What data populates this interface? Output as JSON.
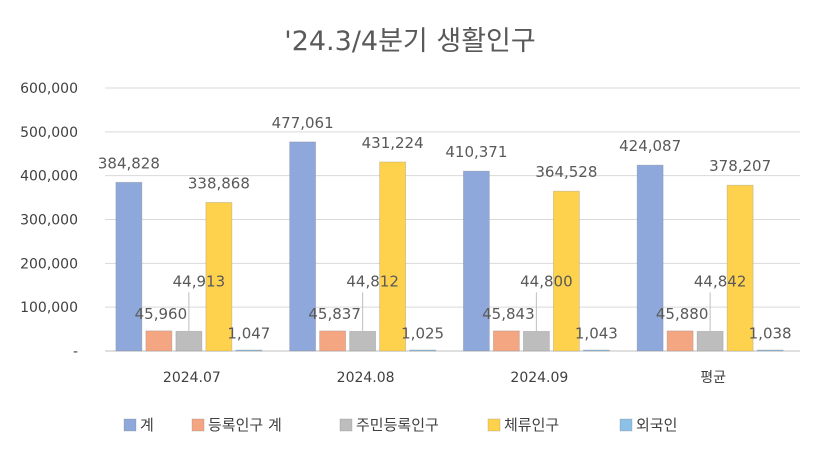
{
  "chart_data": {
    "type": "bar",
    "title": "'24.3/4분기 생활인구",
    "categories": [
      "2024.07",
      "2024.08",
      "2024.09",
      "평균"
    ],
    "series": [
      {
        "name": "계",
        "color": "#8FA8DC",
        "values": [
          384828,
          477061,
          410371,
          424087
        ],
        "labels": [
          "384,828",
          "477,061",
          "410,371",
          "424,087"
        ]
      },
      {
        "name": "등록인구 계",
        "color": "#F4A582",
        "values": [
          45960,
          45837,
          45843,
          45880
        ],
        "labels": [
          "45,960",
          "45,837",
          "45,843",
          "45,880"
        ]
      },
      {
        "name": "주민등록인구",
        "color": "#BDBDBD",
        "values": [
          44913,
          44812,
          44800,
          44842
        ],
        "labels": [
          "44,913",
          "44,812",
          "44,800",
          "44,842"
        ]
      },
      {
        "name": "체류인구",
        "color": "#FFD24D",
        "values": [
          338868,
          431224,
          364528,
          378207
        ],
        "labels": [
          "338,868",
          "431,224",
          "364,528",
          "378,207"
        ]
      },
      {
        "name": "외국인",
        "color": "#8CC0E6",
        "values": [
          1047,
          1025,
          1043,
          1038
        ],
        "labels": [
          "1,047",
          "1,025",
          "1,043",
          "1,038"
        ]
      }
    ],
    "ylim": [
      0,
      600000
    ],
    "yticks": [
      0,
      100000,
      200000,
      300000,
      400000,
      500000,
      600000
    ],
    "ytick_labels": [
      "-",
      "100,000",
      "200,000",
      "300,000",
      "400,000",
      "500,000",
      "600,000"
    ],
    "grid": true,
    "legend_position": "bottom"
  }
}
